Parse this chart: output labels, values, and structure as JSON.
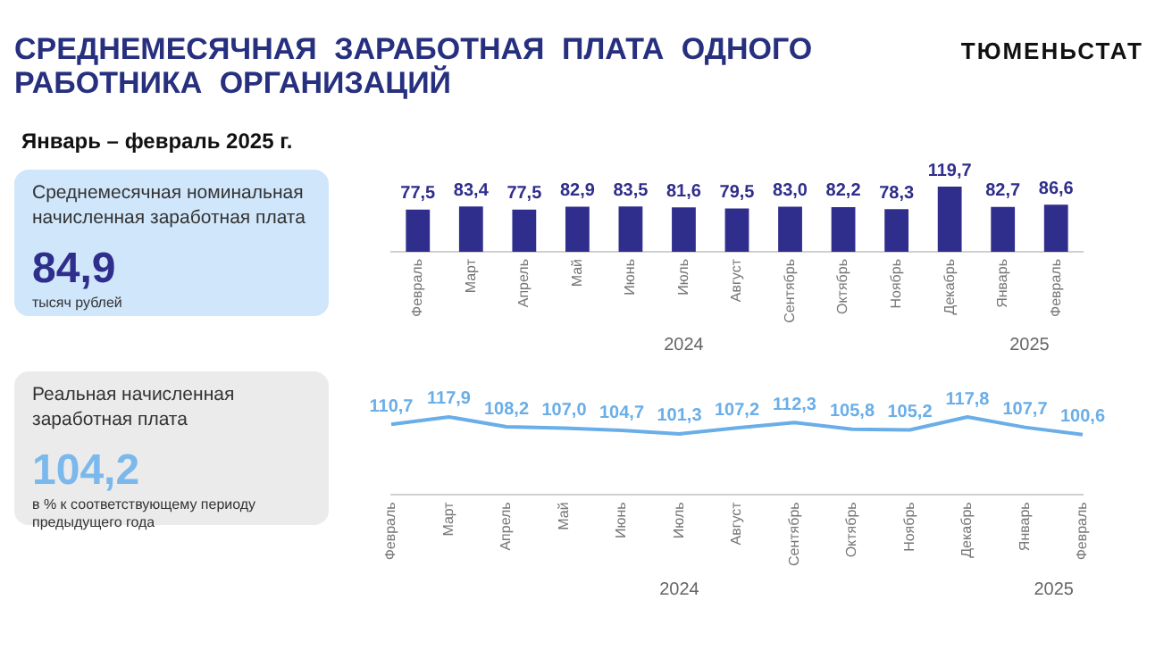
{
  "chart_data": [
    {
      "type": "other",
      "title": "СРЕДНЕМЕСЯЧНАЯ ЗАРАБОТНАЯ ПЛАТА ОДНОГО РАБОТНИКА ОРГАНИЗАЦИЙ",
      "subtitle": "Январь – февраль 2025 г.",
      "annotations": [
        "ТЮМЕНЬСТАТ"
      ]
    },
    {
      "type": "other",
      "title": "Среднемесячная номинальная начисленная заработная плата",
      "annotations": [
        "84,9",
        "тысяч рублей"
      ]
    },
    {
      "type": "bar",
      "categories": [
        "Февраль",
        "Март",
        "Апрель",
        "Май",
        "Июнь",
        "Июль",
        "Август",
        "Сентябрь",
        "Октябрь",
        "Ноябрь",
        "Декабрь",
        "Январь",
        "Февраль"
      ],
      "series": [
        {
          "color": "#2f2e8c",
          "values": [
            77.5,
            83.4,
            77.5,
            82.9,
            83.5,
            81.6,
            79.5,
            83.0,
            82.2,
            78.3,
            119.7,
            82.7,
            86.6
          ],
          "value_labels": [
            "77,5",
            "83,4",
            "77,5",
            "82,9",
            "83,5",
            "81,6",
            "79,5",
            "83,0",
            "82,2",
            "78,3",
            "119,7",
            "82,7",
            "86,6"
          ]
        }
      ],
      "annotations": [
        "2024",
        "2025"
      ],
      "tick_labels": "x",
      "grid": false,
      "legend": false
    },
    {
      "type": "other",
      "title": "Реальная начисленная заработная плата",
      "annotations": [
        "104,2",
        "в % к соответствующему периоду предыдущего года"
      ]
    },
    {
      "type": "line",
      "categories": [
        "Февраль",
        "Март",
        "Апрель",
        "Май",
        "Июнь",
        "Июль",
        "Август",
        "Сентябрь",
        "Октябрь",
        "Ноябрь",
        "Декабрь",
        "Январь",
        "Февраль"
      ],
      "series": [
        {
          "color": "#6aaee8",
          "values": [
            110.7,
            117.9,
            108.2,
            107.0,
            104.7,
            101.3,
            107.2,
            112.3,
            105.8,
            105.2,
            117.8,
            107.7,
            100.6
          ],
          "value_labels": [
            "110,7",
            "117,9",
            "108,2",
            "107,0",
            "104,7",
            "101,3",
            "107,2",
            "112,3",
            "105,8",
            "105,2",
            "117,8",
            "107,7",
            "100,6"
          ]
        }
      ],
      "annotations": [
        "2024",
        "2025"
      ],
      "tick_labels": "x",
      "grid": false,
      "legend": false,
      "marker": "none"
    }
  ]
}
